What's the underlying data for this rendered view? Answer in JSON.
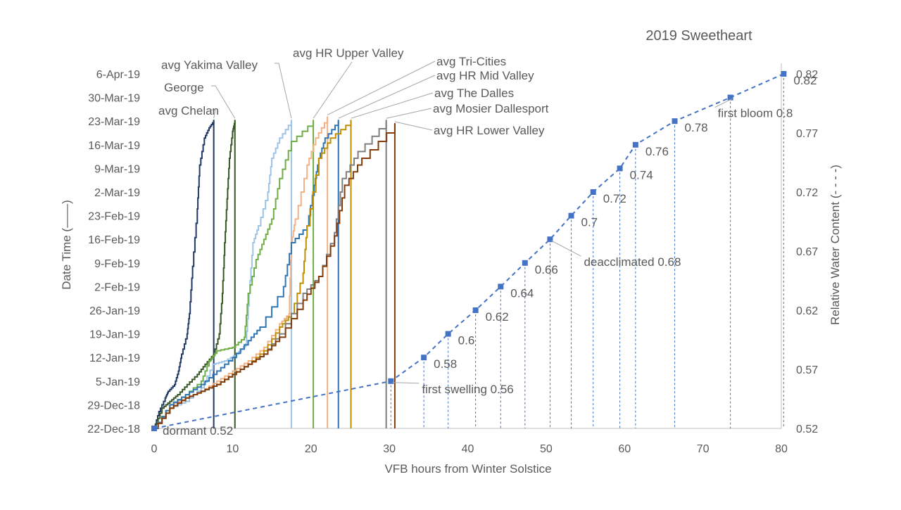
{
  "chart_data": {
    "type": "line",
    "title": "2019 Sweetheart",
    "xlabel": "VFB hours from Winter Solstice",
    "ylabel": "Date Time (——)",
    "y2label": "Relative Water Content (- - - -)",
    "xlim": [
      0,
      80
    ],
    "x_ticks": [
      "0",
      "10",
      "20",
      "30",
      "40",
      "50",
      "60",
      "70",
      "80"
    ],
    "y_ticks": [
      "22-Dec-18",
      "29-Dec-18",
      "5-Jan-19",
      "12-Jan-19",
      "19-Jan-19",
      "26-Jan-19",
      "2-Feb-19",
      "9-Feb-19",
      "16-Feb-19",
      "23-Feb-19",
      "2-Mar-19",
      "9-Mar-19",
      "16-Mar-19",
      "23-Mar-19",
      "30-Mar-19",
      "6-Apr-19"
    ],
    "y_days_range": [
      0,
      105
    ],
    "y2lim": [
      0.52,
      0.82
    ],
    "y2_ticks": [
      "0.52",
      "0.57",
      "0.62",
      "0.67",
      "0.72",
      "0.77",
      "0.82"
    ],
    "series": [
      {
        "name": "avg Chelan",
        "color": "#1f3864",
        "end_x": 7.6,
        "points": [
          [
            0,
            0
          ],
          [
            0.6,
            5
          ],
          [
            1.4,
            9
          ],
          [
            1.8,
            11
          ],
          [
            2.6,
            13
          ],
          [
            3.1,
            17
          ],
          [
            3.5,
            22
          ],
          [
            4.2,
            28
          ],
          [
            4.5,
            34
          ],
          [
            4.9,
            48
          ],
          [
            5.5,
            65
          ],
          [
            5.8,
            78
          ],
          [
            6.4,
            86
          ],
          [
            7.0,
            89
          ],
          [
            7.6,
            91
          ]
        ]
      },
      {
        "name": "George",
        "color": "#375623",
        "end_x": 10.3,
        "points": [
          [
            0,
            0
          ],
          [
            1,
            6
          ],
          [
            2,
            8
          ],
          [
            3,
            10
          ],
          [
            4.2,
            13
          ],
          [
            5.5,
            16
          ],
          [
            6.5,
            19
          ],
          [
            7.6,
            22
          ],
          [
            8.3,
            28
          ],
          [
            8.7,
            40
          ],
          [
            9,
            55
          ],
          [
            9.3,
            68
          ],
          [
            9.6,
            80
          ],
          [
            10.0,
            88
          ],
          [
            10.3,
            91
          ]
        ]
      },
      {
        "name": "avg Yakima Valley",
        "color": "#9dc3e6",
        "end_x": 17.5,
        "points": [
          [
            0,
            0
          ],
          [
            2,
            6
          ],
          [
            4,
            8
          ],
          [
            6,
            12
          ],
          [
            7.5,
            19
          ],
          [
            9,
            20
          ],
          [
            10.5,
            22
          ],
          [
            11.7,
            25
          ],
          [
            12.1,
            40
          ],
          [
            12.6,
            55
          ],
          [
            13.3,
            60
          ],
          [
            14.5,
            70
          ],
          [
            15,
            80
          ],
          [
            16,
            86
          ],
          [
            17.5,
            91
          ]
        ]
      },
      {
        "name": "avg HR Upper Valley",
        "color": "#70ad47",
        "end_x": 20.3,
        "points": [
          [
            0,
            0
          ],
          [
            2,
            7
          ],
          [
            4,
            10
          ],
          [
            6,
            14
          ],
          [
            7,
            20
          ],
          [
            8,
            23
          ],
          [
            10,
            24
          ],
          [
            11.5,
            27
          ],
          [
            12,
            40
          ],
          [
            13,
            50
          ],
          [
            14,
            56
          ],
          [
            15,
            62
          ],
          [
            16,
            74
          ],
          [
            17.5,
            85
          ],
          [
            20.3,
            91
          ]
        ]
      },
      {
        "name": "avg Tri-Cities",
        "color": "#f4b183",
        "end_x": 22.1,
        "points": [
          [
            0,
            0
          ],
          [
            2,
            7
          ],
          [
            4,
            9
          ],
          [
            6,
            11
          ],
          [
            8,
            14
          ],
          [
            10,
            17
          ],
          [
            12,
            20
          ],
          [
            14,
            24
          ],
          [
            16,
            31
          ],
          [
            17.2,
            34
          ],
          [
            17.5,
            55
          ],
          [
            18,
            62
          ],
          [
            19.5,
            78
          ],
          [
            20.6,
            86
          ],
          [
            22.1,
            92
          ]
        ]
      },
      {
        "name": "avg HR Mid Valley",
        "color": "#2e75b6",
        "end_x": 23.5,
        "points": [
          [
            0,
            0
          ],
          [
            2,
            7
          ],
          [
            4,
            10
          ],
          [
            6,
            13
          ],
          [
            8,
            17
          ],
          [
            10,
            21
          ],
          [
            12,
            26
          ],
          [
            13.5,
            30
          ],
          [
            16.5,
            42
          ],
          [
            17.5,
            55
          ],
          [
            19.5,
            60
          ],
          [
            20.4,
            72
          ],
          [
            21,
            80
          ],
          [
            21.8,
            86
          ],
          [
            23.5,
            91
          ]
        ]
      },
      {
        "name": "avg The Dalles",
        "color": "#bf8f00",
        "end_x": 25.1,
        "points": [
          [
            0,
            0
          ],
          [
            2,
            6
          ],
          [
            4,
            9
          ],
          [
            6,
            11
          ],
          [
            8,
            13
          ],
          [
            10,
            16
          ],
          [
            12,
            19
          ],
          [
            14,
            23
          ],
          [
            16,
            30
          ],
          [
            17.5,
            34
          ],
          [
            19,
            46
          ],
          [
            19.5,
            60
          ],
          [
            21,
            80
          ],
          [
            22.5,
            86
          ],
          [
            25.1,
            91
          ]
        ]
      },
      {
        "name": "avg Mosier Dallesport",
        "color": "#7f7f7f",
        "end_x": 29.6,
        "points": [
          [
            0,
            0
          ],
          [
            2,
            6
          ],
          [
            4,
            9
          ],
          [
            6,
            11
          ],
          [
            8,
            13
          ],
          [
            10,
            16
          ],
          [
            12,
            19
          ],
          [
            14,
            22
          ],
          [
            16,
            28
          ],
          [
            19,
            40
          ],
          [
            21,
            45
          ],
          [
            23,
            58
          ],
          [
            24,
            74
          ],
          [
            26,
            82
          ],
          [
            29.6,
            91
          ]
        ]
      },
      {
        "name": "avg HR Lower Valley",
        "color": "#843c0c",
        "end_x": 30.7,
        "points": [
          [
            0,
            0
          ],
          [
            2,
            6
          ],
          [
            4,
            9
          ],
          [
            6,
            11
          ],
          [
            8,
            13
          ],
          [
            10,
            16
          ],
          [
            12,
            19
          ],
          [
            14,
            22
          ],
          [
            16,
            27
          ],
          [
            19,
            38
          ],
          [
            21,
            45
          ],
          [
            23,
            57
          ],
          [
            24.3,
            72
          ],
          [
            26.5,
            80
          ],
          [
            30.7,
            90
          ]
        ]
      }
    ],
    "rwc": {
      "name": "Relative Water Content",
      "color": "#4472c4",
      "x": [
        0,
        30.2,
        34.4,
        37.5,
        41,
        44.2,
        47.3,
        50.5,
        53.2,
        56,
        59.4,
        61.4,
        66.4,
        73.5,
        80.3
      ],
      "y": [
        0.52,
        0.56,
        0.58,
        0.6,
        0.62,
        0.64,
        0.66,
        0.68,
        0.7,
        0.72,
        0.74,
        0.76,
        0.78,
        0.8,
        0.82
      ],
      "labels": [
        "dormant 0.52",
        "first swelling 0.56",
        "0.58",
        "0.6",
        "0.62",
        "0.64",
        "0.66",
        "deacclimated 0.68",
        "0.7",
        "0.72",
        "0.74",
        "0.76",
        "0.78",
        "first bloom 0.8",
        "0.82"
      ]
    }
  }
}
